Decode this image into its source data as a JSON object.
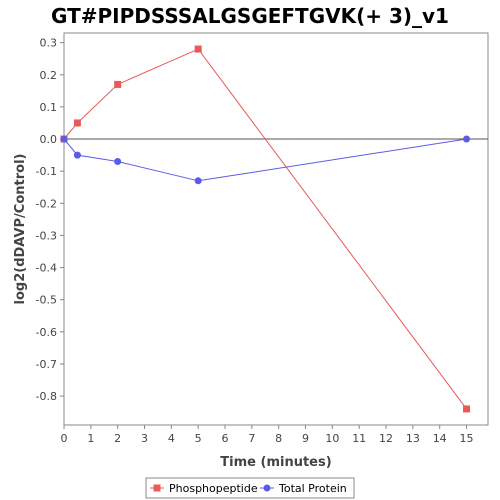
{
  "chart_data": {
    "type": "line",
    "title": "GT#PIPDSSSALGSGEFTGVK(+ 3)_v1",
    "xlabel": "Time (minutes)",
    "ylabel": "log2(dDAVP/Control)",
    "xlim": [
      0,
      15.8
    ],
    "ylim": [
      -0.89,
      0.33
    ],
    "xticks": [
      0,
      1,
      2,
      3,
      4,
      5,
      6,
      7,
      8,
      9,
      10,
      11,
      12,
      13,
      14,
      15
    ],
    "yticks": [
      0.3,
      0.2,
      0.1,
      0.0,
      -0.1,
      -0.2,
      -0.3,
      -0.4,
      -0.5,
      -0.6,
      -0.7,
      -0.8
    ],
    "ytick_labels": [
      "0.3",
      "0.2",
      "0.1",
      "0.0",
      "-0.1",
      "-0.2",
      "-0.3",
      "-0.4",
      "-0.5",
      "-0.6",
      "-0.7",
      "-0.8"
    ],
    "zero_line": true,
    "grid": false,
    "legend_position": "bottom-center",
    "series": [
      {
        "name": "Phosphopeptide",
        "color": "#e8595a",
        "marker": "square",
        "x": [
          0,
          0.5,
          2,
          5,
          15
        ],
        "y": [
          0.0,
          0.05,
          0.17,
          0.28,
          -0.84
        ]
      },
      {
        "name": "Total Protein",
        "color": "#5b5bea",
        "marker": "circle",
        "x": [
          0,
          0.5,
          2,
          5,
          15
        ],
        "y": [
          0.0,
          -0.05,
          -0.07,
          -0.13,
          0.0
        ]
      }
    ]
  }
}
